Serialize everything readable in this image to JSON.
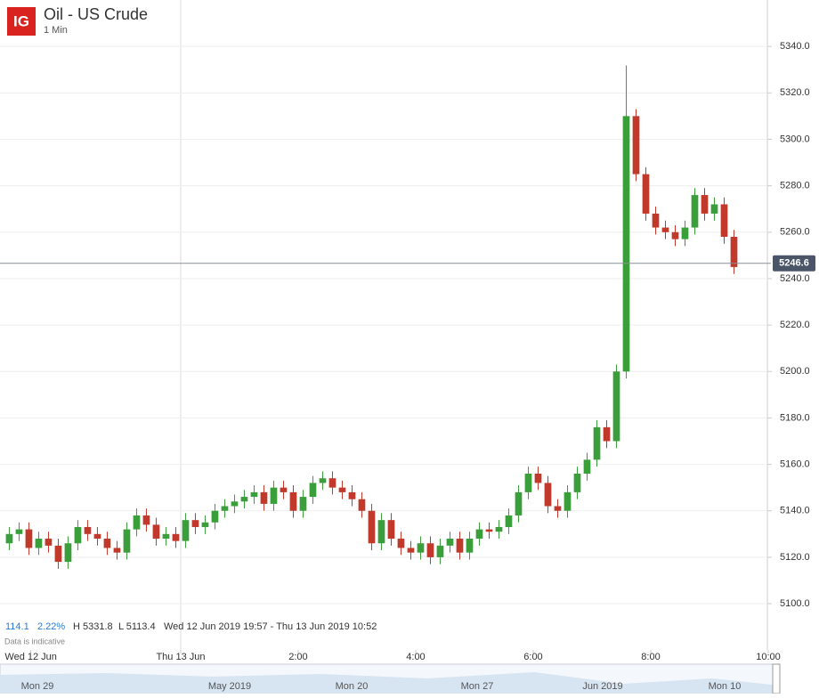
{
  "header": {
    "logo": "IG",
    "title": "Oil - US Crude",
    "interval": "1 Min"
  },
  "info": {
    "change": "114.1",
    "change_pct": "2.22%",
    "high": "H 5331.8",
    "low": "L 5113.4",
    "range": "Wed 12 Jun 2019 19:57 - Thu 13 Jun 2019 10:52",
    "note": "Data is indicative"
  },
  "navigator": {
    "labels": [
      "Mon 29",
      "May 2019",
      "Mon 20",
      "Mon 27",
      "Jun 2019",
      "Mon 10"
    ]
  },
  "chart_data": {
    "type": "candlestick",
    "up_color": "#3a9e3a",
    "down_color": "#c0392b",
    "x": [
      -180,
      -170,
      -160,
      -150,
      -140,
      -130,
      -120,
      -110,
      -100,
      -90,
      -80,
      -70,
      -60,
      -50,
      -40,
      -30,
      -20,
      -10,
      0,
      10,
      20,
      30,
      40,
      50,
      60,
      70,
      80,
      90,
      100,
      110,
      120,
      130,
      140,
      150,
      160,
      170,
      180,
      190,
      200,
      210,
      220,
      230,
      240,
      250,
      260,
      270,
      280,
      290,
      300,
      310,
      320,
      330,
      340,
      350,
      360,
      370,
      380,
      390,
      400,
      410,
      420,
      430,
      440,
      450,
      460,
      470,
      480,
      490,
      500,
      510,
      520,
      530,
      540,
      550,
      560
    ],
    "open": [
      5126,
      5130,
      5132,
      5124,
      5128,
      5125,
      5118,
      5126,
      5133,
      5130,
      5128,
      5124,
      5122,
      5132,
      5138,
      5134,
      5128,
      5130,
      5127,
      5136,
      5133,
      5135,
      5140,
      5142,
      5144,
      5146,
      5148,
      5143,
      5150,
      5148,
      5140,
      5146,
      5152,
      5154,
      5150,
      5148,
      5145,
      5140,
      5126,
      5136,
      5128,
      5124,
      5122,
      5126,
      5120,
      5125,
      5128,
      5122,
      5128,
      5132,
      5131,
      5133,
      5138,
      5148,
      5156,
      5152,
      5142,
      5140,
      5148,
      5156,
      5162,
      5176,
      5170,
      5200,
      5310,
      5285,
      5268,
      5262,
      5260,
      5257,
      5262,
      5276,
      5268,
      5272,
      5258
    ],
    "high": [
      5133,
      5135,
      5135,
      5131,
      5131,
      5128,
      5129,
      5136,
      5136,
      5133,
      5131,
      5127,
      5135,
      5141,
      5141,
      5137,
      5133,
      5133,
      5139,
      5139,
      5138,
      5143,
      5145,
      5147,
      5149,
      5151,
      5151,
      5153,
      5153,
      5151,
      5149,
      5155,
      5157,
      5157,
      5153,
      5151,
      5148,
      5143,
      5139,
      5139,
      5131,
      5127,
      5129,
      5129,
      5128,
      5131,
      5131,
      5131,
      5135,
      5135,
      5136,
      5141,
      5151,
      5159,
      5159,
      5155,
      5145,
      5151,
      5159,
      5165,
      5179,
      5179,
      5203,
      5331.8,
      5313,
      5288,
      5271,
      5265,
      5263,
      5265,
      5279,
      5279,
      5275,
      5275,
      5261
    ],
    "low": [
      5123,
      5127,
      5121,
      5121,
      5122,
      5115,
      5115,
      5123,
      5127,
      5125,
      5121,
      5119,
      5119,
      5129,
      5131,
      5125,
      5125,
      5124,
      5124,
      5130,
      5130,
      5132,
      5137,
      5139,
      5141,
      5143,
      5140,
      5140,
      5145,
      5137,
      5137,
      5143,
      5149,
      5147,
      5145,
      5142,
      5137,
      5123,
      5123,
      5125,
      5121,
      5119,
      5119,
      5117,
      5117,
      5122,
      5119,
      5119,
      5125,
      5128,
      5128,
      5130,
      5135,
      5145,
      5149,
      5139,
      5137,
      5137,
      5145,
      5153,
      5159,
      5167,
      5167,
      5197,
      5282,
      5265,
      5259,
      5257,
      5254,
      5254,
      5259,
      5265,
      5265,
      5255,
      5242
    ],
    "close": [
      5130,
      5132,
      5124,
      5128,
      5125,
      5118,
      5126,
      5133,
      5130,
      5128,
      5124,
      5122,
      5132,
      5138,
      5134,
      5128,
      5130,
      5127,
      5136,
      5133,
      5135,
      5140,
      5142,
      5144,
      5146,
      5148,
      5143,
      5150,
      5148,
      5140,
      5146,
      5152,
      5154,
      5150,
      5148,
      5145,
      5140,
      5126,
      5136,
      5128,
      5124,
      5122,
      5126,
      5120,
      5125,
      5128,
      5122,
      5128,
      5132,
      5131,
      5133,
      5138,
      5148,
      5156,
      5152,
      5142,
      5140,
      5148,
      5156,
      5162,
      5176,
      5170,
      5200,
      5310,
      5285,
      5268,
      5262,
      5260,
      5257,
      5262,
      5276,
      5268,
      5272,
      5258,
      5245
    ],
    "xlim": [
      -184.5,
      600
    ],
    "xticks": [
      {
        "value": -153,
        "label": "Wed 12 Jun"
      },
      {
        "value": 0,
        "label": "Thu 13 Jun"
      },
      {
        "value": 120,
        "label": "2:00"
      },
      {
        "value": 240,
        "label": "4:00"
      },
      {
        "value": 360,
        "label": "6:00"
      },
      {
        "value": 480,
        "label": "8:00"
      },
      {
        "value": 600,
        "label": "10:00"
      }
    ],
    "ylim": [
      5093.5,
      5360
    ],
    "yticks": [
      {
        "value": 5100,
        "label": "5100.0"
      },
      {
        "value": 5120,
        "label": "5120.0"
      },
      {
        "value": 5140,
        "label": "5140.0"
      },
      {
        "value": 5160,
        "label": "5160.0"
      },
      {
        "value": 5180,
        "label": "5180.0"
      },
      {
        "value": 5200,
        "label": "5200.0"
      },
      {
        "value": 5220,
        "label": "5220.0"
      },
      {
        "value": 5240,
        "label": "5240.0"
      },
      {
        "value": 5260,
        "label": "5260.0"
      },
      {
        "value": 5280,
        "label": "5280.0"
      },
      {
        "value": 5300,
        "label": "5300.0"
      },
      {
        "value": 5320,
        "label": "5320.0"
      },
      {
        "value": 5340,
        "label": "5340.0"
      }
    ],
    "last_price": 5246.6,
    "grid": true
  }
}
